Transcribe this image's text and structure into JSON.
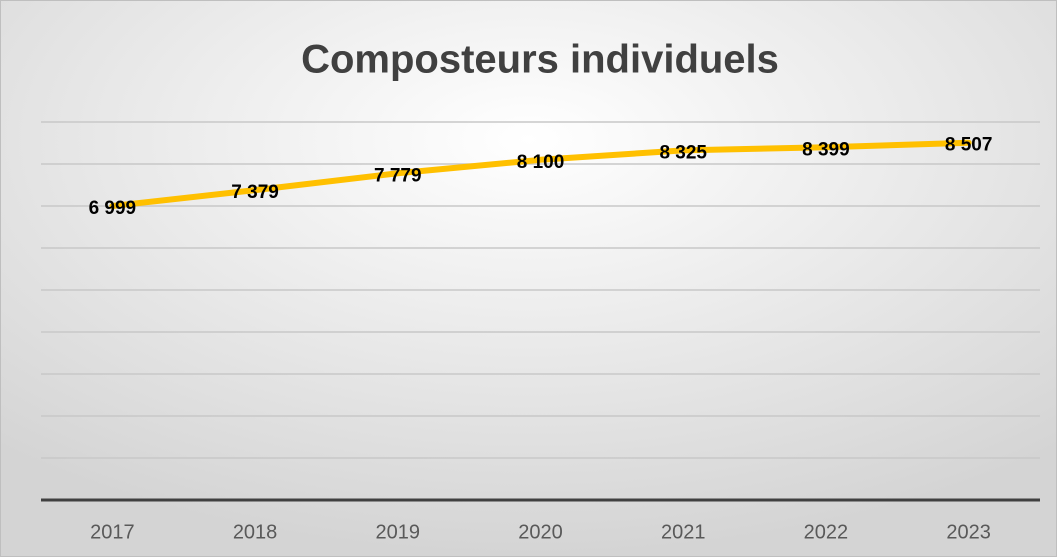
{
  "chart_data": {
    "type": "line",
    "title": "Composteurs individuels",
    "categories": [
      "2017",
      "2018",
      "2019",
      "2020",
      "2021",
      "2022",
      "2023"
    ],
    "values": [
      6999,
      7379,
      7779,
      8100,
      8325,
      8399,
      8507
    ],
    "value_labels": [
      "6 999",
      "7 379",
      "7 779",
      "8 100",
      "8 325",
      "8 399",
      "8 507"
    ],
    "color": "#ffc000",
    "ylim": [
      0,
      9000
    ],
    "yticks": [
      0,
      1000,
      2000,
      3000,
      4000,
      5000,
      6000,
      7000,
      8000,
      9000
    ],
    "grid": true
  }
}
